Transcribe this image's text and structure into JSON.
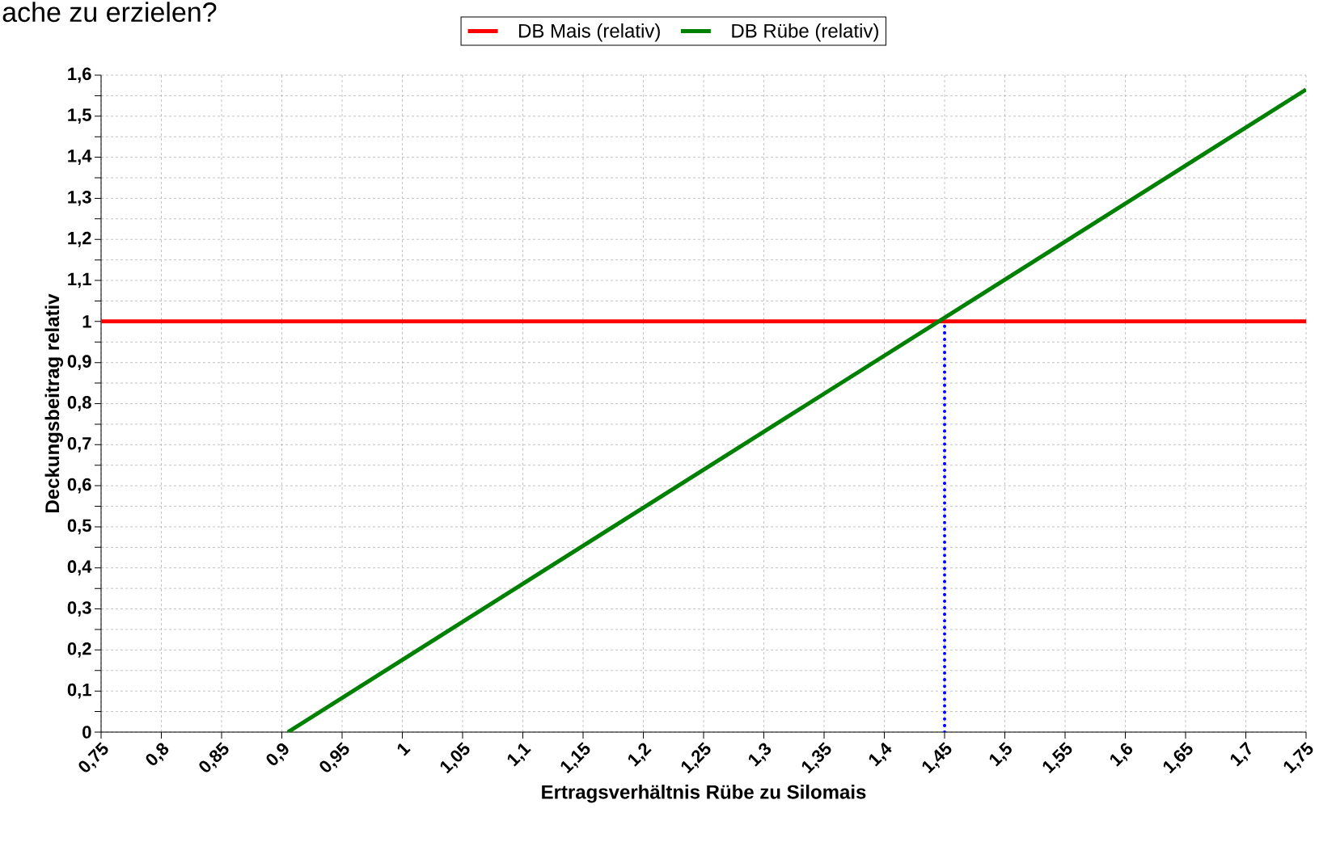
{
  "chart_data": {
    "type": "line",
    "title": "ache zu erzielen?",
    "xlabel": "Ertragsverhältnis Rübe zu Silomais",
    "ylabel": "Deckungsbeitrag relativ",
    "series": [
      {
        "name": "DB Mais (relativ)",
        "color": "#ff0000",
        "x": [
          0.75,
          1.75
        ],
        "values": [
          1,
          1
        ]
      },
      {
        "name": "DB Rübe (relativ)",
        "color": "#008000",
        "x": [
          0.905,
          1.75
        ],
        "values": [
          0,
          1.565
        ]
      },
      {
        "color": "#0000ff",
        "x": [
          1.45,
          1.45
        ],
        "values": [
          0,
          1
        ],
        "line_style": "dotted"
      }
    ],
    "xlim": [
      0.75,
      1.75
    ],
    "ylim": [
      0,
      1.6
    ],
    "xticks": [
      {
        "value": 0.75,
        "label": "0,75"
      },
      {
        "value": 0.8,
        "label": "0,8"
      },
      {
        "value": 0.85,
        "label": "0,85"
      },
      {
        "value": 0.9,
        "label": "0,9"
      },
      {
        "value": 0.95,
        "label": "0,95"
      },
      1,
      {
        "value": 1.05,
        "label": "1,05"
      },
      {
        "value": 1.1,
        "label": "1,1"
      },
      {
        "value": 1.15,
        "label": "1,15"
      },
      {
        "value": 1.2,
        "label": "1,2"
      },
      {
        "value": 1.25,
        "label": "1,25"
      },
      {
        "value": 1.3,
        "label": "1,3"
      },
      {
        "value": 1.35,
        "label": "1,35"
      },
      {
        "value": 1.4,
        "label": "1,4"
      },
      {
        "value": 1.45,
        "label": "1,45"
      },
      {
        "value": 1.5,
        "label": "1,5"
      },
      {
        "value": 1.55,
        "label": "1,55"
      },
      {
        "value": 1.6,
        "label": "1,6"
      },
      {
        "value": 1.65,
        "label": "1,65"
      },
      {
        "value": 1.7,
        "label": "1,7"
      },
      {
        "value": 1.75,
        "label": "1,75"
      }
    ],
    "yticks": [
      0,
      {
        "value": 0.05,
        "label": null
      },
      {
        "value": 0.1,
        "label": "0,1"
      },
      {
        "value": 0.15,
        "label": null
      },
      {
        "value": 0.2,
        "label": "0,2"
      },
      {
        "value": 0.25,
        "label": null
      },
      {
        "value": 0.3,
        "label": "0,3"
      },
      {
        "value": 0.35,
        "label": null
      },
      {
        "value": 0.4,
        "label": "0,4"
      },
      {
        "value": 0.45,
        "label": null
      },
      {
        "value": 0.5,
        "label": "0,5"
      },
      {
        "value": 0.55,
        "label": null
      },
      {
        "value": 0.6,
        "label": "0,6"
      },
      {
        "value": 0.65,
        "label": null
      },
      {
        "value": 0.7,
        "label": "0,7"
      },
      {
        "value": 0.75,
        "label": null
      },
      {
        "value": 0.8,
        "label": "0,8"
      },
      {
        "value": 0.85,
        "label": null
      },
      {
        "value": 0.9,
        "label": "0,9"
      },
      {
        "value": 0.95,
        "label": null
      },
      1,
      {
        "value": 1.05,
        "label": null
      },
      {
        "value": 1.1,
        "label": "1,1"
      },
      {
        "value": 1.15,
        "label": null
      },
      {
        "value": 1.2,
        "label": "1,2"
      },
      {
        "value": 1.25,
        "label": null
      },
      {
        "value": 1.3,
        "label": "1,3"
      },
      {
        "value": 1.35,
        "label": null
      },
      {
        "value": 1.4,
        "label": "1,4"
      },
      {
        "value": 1.45,
        "label": null
      },
      {
        "value": 1.5,
        "label": "1,5"
      },
      {
        "value": 1.55,
        "label": null
      },
      {
        "value": 1.6,
        "label": "1,6"
      }
    ],
    "grid": true,
    "legend": "top",
    "marker": "none",
    "line_style": "solid"
  }
}
